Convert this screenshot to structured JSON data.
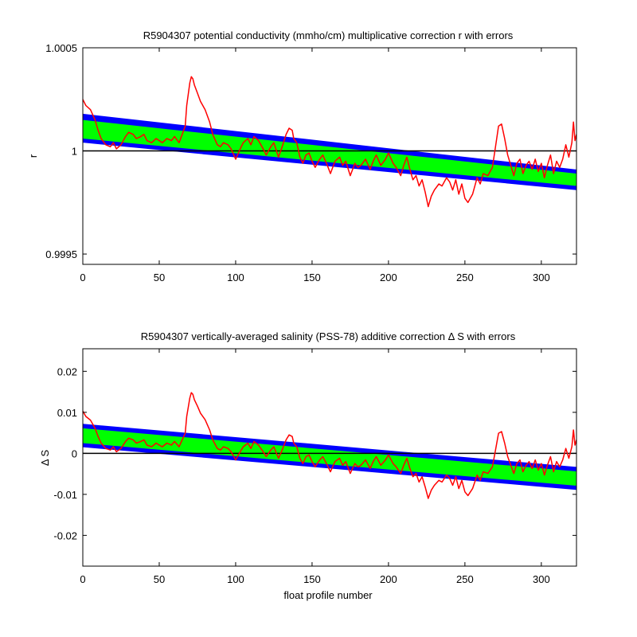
{
  "colors": {
    "background": "#ffffff",
    "outer_band": "#0000ff",
    "inner_band": "#00ff00",
    "estimate_line": "#ff0000",
    "zero_line": "#000000",
    "axes": "#000000"
  },
  "chart_data": [
    {
      "type": "line",
      "title": "R5904307 potential conductivity (mmho/cm) multiplicative correction r with errors",
      "xlabel": "",
      "ylabel": "r",
      "xlim": [
        0,
        323
      ],
      "ylim": [
        0.99945,
        1.0005
      ],
      "xticks": [
        0,
        50,
        100,
        150,
        200,
        250,
        300
      ],
      "xtick_labels": [
        "0",
        "50",
        "100",
        "150",
        "200",
        "250",
        "300"
      ],
      "yticks": [
        0.9995,
        1,
        1.0005
      ],
      "ytick_labels": [
        "0.9995",
        "1",
        "1.0005"
      ],
      "reference_line": 1,
      "bands": [
        {
          "name": "outer",
          "color": "#0000ff",
          "x": [
            0,
            323
          ],
          "lower": [
            1.00004,
            0.99981
          ],
          "upper": [
            1.00018,
            0.99991
          ]
        },
        {
          "name": "inner",
          "color": "#00ff00",
          "x": [
            0,
            323
          ],
          "lower": [
            1.00006,
            0.99983
          ],
          "upper": [
            1.00015,
            0.99989
          ]
        }
      ],
      "series": [
        {
          "color": "#ff0000",
          "x": [
            0,
            2,
            5,
            8,
            10,
            12,
            15,
            18,
            20,
            22,
            25,
            28,
            30,
            33,
            35,
            38,
            40,
            42,
            45,
            48,
            50,
            52,
            55,
            58,
            60,
            63,
            65,
            67,
            68,
            70,
            71,
            72,
            73,
            75,
            77,
            80,
            83,
            85,
            88,
            90,
            92,
            95,
            97,
            100,
            103,
            105,
            108,
            110,
            112,
            115,
            118,
            120,
            123,
            125,
            128,
            130,
            133,
            135,
            137,
            138,
            140,
            142,
            144,
            146,
            148,
            150,
            152,
            155,
            157,
            160,
            162,
            165,
            168,
            170,
            172,
            175,
            178,
            180,
            182,
            185,
            188,
            190,
            192,
            195,
            198,
            200,
            203,
            205,
            208,
            210,
            212,
            214,
            216,
            218,
            220,
            222,
            224,
            226,
            228,
            230,
            233,
            235,
            238,
            240,
            242,
            244,
            246,
            248,
            250,
            252,
            255,
            258,
            260,
            262,
            265,
            268,
            270,
            272,
            274,
            276,
            278,
            280,
            282,
            284,
            286,
            288,
            290,
            292,
            294,
            296,
            298,
            300,
            302,
            304,
            306,
            308,
            310,
            312,
            314,
            316,
            318,
            320,
            321,
            322,
            323
          ],
          "y": [
            1.00025,
            1.00022,
            1.0002,
            1.00015,
            1.0001,
            1.00006,
            1.00003,
            1.00002,
            1.00004,
            1.00001,
            1.00003,
            1.00007,
            1.00009,
            1.00008,
            1.00006,
            1.00007,
            1.00008,
            1.00005,
            1.00004,
            1.00006,
            1.00005,
            1.00004,
            1.00006,
            1.00005,
            1.00007,
            1.00004,
            1.00008,
            1.00012,
            1.00022,
            1.00033,
            1.00036,
            1.00035,
            1.00032,
            1.00028,
            1.00024,
            1.0002,
            1.00014,
            1.00008,
            1.00003,
            1.00002,
            1.00004,
            1.00003,
            1.00001,
            0.99996,
            1.00001,
            1.00004,
            1.00006,
            1.00003,
            1.00007,
            1.00005,
            1.00001,
            0.99998,
            1.00002,
            1.00004,
            0.99997,
            1.00001,
            1.00008,
            1.00011,
            1.0001,
            1.00006,
            1.00004,
            0.99997,
            0.99994,
            0.99998,
            0.99999,
            0.99995,
            0.99992,
            0.99996,
            0.99998,
            0.99993,
            0.99989,
            0.99995,
            0.99997,
            0.99993,
            0.99995,
            0.99988,
            0.99994,
            0.99992,
            0.99993,
            0.99996,
            0.99991,
            0.99995,
            0.99998,
            0.99993,
            0.99996,
            0.99999,
            0.99994,
            0.99992,
            0.99988,
            0.99993,
            0.99997,
            0.99991,
            0.99986,
            0.99988,
            0.99983,
            0.99986,
            0.9998,
            0.99973,
            0.99978,
            0.99981,
            0.99984,
            0.99983,
            0.99987,
            0.99985,
            0.99981,
            0.99986,
            0.99979,
            0.99984,
            0.99977,
            0.99975,
            0.99979,
            0.99987,
            0.99984,
            0.99989,
            0.99988,
            0.99992,
            1.00002,
            1.00012,
            1.00013,
            1.00006,
            0.99998,
            0.99993,
            0.99988,
            0.99994,
            0.99996,
            0.99989,
            0.99993,
            0.99995,
            0.99991,
            0.99996,
            0.9999,
            0.99994,
            0.99987,
            0.99993,
            0.99998,
            0.99989,
            0.99995,
            0.99992,
            0.99996,
            1.00003,
            0.99997,
            1.00004,
            1.00014,
            1.00005,
            1.00008
          ]
        }
      ]
    },
    {
      "type": "line",
      "title": "R5904307 vertically-averaged salinity (PSS-78) additive correction Δ S with errors",
      "xlabel": "float profile number",
      "ylabel": "Δ S",
      "xlim": [
        0,
        323
      ],
      "ylim": [
        -0.0275,
        0.0255
      ],
      "xticks": [
        0,
        50,
        100,
        150,
        200,
        250,
        300
      ],
      "xtick_labels": [
        "0",
        "50",
        "100",
        "150",
        "200",
        "250",
        "300"
      ],
      "yticks": [
        -0.02,
        -0.01,
        0,
        0.01,
        0.02
      ],
      "ytick_labels": [
        "-0.02",
        "-0.01",
        "0",
        "0.01",
        "0.02"
      ],
      "reference_line": 0,
      "bands": [
        {
          "name": "outer",
          "color": "#0000ff",
          "x": [
            0,
            323
          ],
          "lower": [
            0.0015,
            -0.0089
          ],
          "upper": [
            0.0072,
            -0.0033
          ]
        },
        {
          "name": "inner",
          "color": "#00ff00",
          "x": [
            0,
            323
          ],
          "lower": [
            0.0025,
            -0.0079
          ],
          "upper": [
            0.0061,
            -0.0044
          ]
        }
      ],
      "series": [
        {
          "color": "#ff0000",
          "x": [
            0,
            2,
            5,
            8,
            10,
            12,
            15,
            18,
            20,
            22,
            25,
            28,
            30,
            33,
            35,
            38,
            40,
            42,
            45,
            48,
            50,
            52,
            55,
            58,
            60,
            63,
            65,
            67,
            68,
            70,
            71,
            72,
            73,
            75,
            77,
            80,
            83,
            85,
            88,
            90,
            92,
            95,
            97,
            100,
            103,
            105,
            108,
            110,
            112,
            115,
            118,
            120,
            123,
            125,
            128,
            130,
            133,
            135,
            137,
            138,
            140,
            142,
            144,
            146,
            148,
            150,
            152,
            155,
            157,
            160,
            162,
            165,
            168,
            170,
            172,
            175,
            178,
            180,
            182,
            185,
            188,
            190,
            192,
            195,
            198,
            200,
            203,
            205,
            208,
            210,
            212,
            214,
            216,
            218,
            220,
            222,
            224,
            226,
            228,
            230,
            233,
            235,
            238,
            240,
            242,
            244,
            246,
            248,
            250,
            252,
            255,
            258,
            260,
            262,
            265,
            268,
            270,
            272,
            274,
            276,
            278,
            280,
            282,
            284,
            286,
            288,
            290,
            292,
            294,
            296,
            298,
            300,
            302,
            304,
            306,
            308,
            310,
            312,
            314,
            316,
            318,
            320,
            321,
            322,
            323
          ],
          "y": [
            0.0103,
            0.009,
            0.0081,
            0.0061,
            0.0041,
            0.0025,
            0.0012,
            0.0008,
            0.0016,
            0.0004,
            0.0012,
            0.0029,
            0.0037,
            0.0033,
            0.0025,
            0.0029,
            0.0033,
            0.002,
            0.0016,
            0.0025,
            0.002,
            0.0016,
            0.0025,
            0.002,
            0.0029,
            0.0016,
            0.0033,
            0.0049,
            0.009,
            0.0135,
            0.0148,
            0.0144,
            0.0131,
            0.0115,
            0.0098,
            0.0082,
            0.0057,
            0.0033,
            0.0012,
            0.0008,
            0.0016,
            0.0012,
            0.0004,
            -0.0016,
            0.0004,
            0.0016,
            0.0025,
            0.0012,
            0.0029,
            0.002,
            0.0004,
            -0.0008,
            0.0008,
            0.0016,
            -0.0012,
            0.0004,
            0.0033,
            0.0045,
            0.0041,
            0.0025,
            0.0016,
            -0.0012,
            -0.0025,
            -0.0008,
            -0.0004,
            -0.002,
            -0.0033,
            -0.0016,
            -0.0008,
            -0.0029,
            -0.0045,
            -0.002,
            -0.0012,
            -0.0029,
            -0.002,
            -0.0049,
            -0.0025,
            -0.0033,
            -0.0029,
            -0.0016,
            -0.0037,
            -0.002,
            -0.0008,
            -0.0029,
            -0.0016,
            -0.0004,
            -0.0025,
            -0.0033,
            -0.0049,
            -0.0029,
            -0.0012,
            -0.0037,
            -0.0057,
            -0.0049,
            -0.007,
            -0.0057,
            -0.0082,
            -0.011,
            -0.009,
            -0.0078,
            -0.0066,
            -0.007,
            -0.0053,
            -0.0061,
            -0.0078,
            -0.0057,
            -0.0086,
            -0.0066,
            -0.0094,
            -0.0103,
            -0.0086,
            -0.0053,
            -0.0066,
            -0.0045,
            -0.0049,
            -0.0033,
            0.0008,
            0.0049,
            0.0053,
            0.0025,
            -0.0008,
            -0.0029,
            -0.0049,
            -0.0025,
            -0.0016,
            -0.0045,
            -0.0029,
            -0.002,
            -0.0037,
            -0.0016,
            -0.0041,
            -0.0025,
            -0.0053,
            -0.0029,
            -0.0008,
            -0.0045,
            -0.002,
            -0.0033,
            -0.0016,
            0.0012,
            -0.0012,
            0.0016,
            0.0057,
            0.002,
            0.0033
          ]
        }
      ]
    }
  ]
}
